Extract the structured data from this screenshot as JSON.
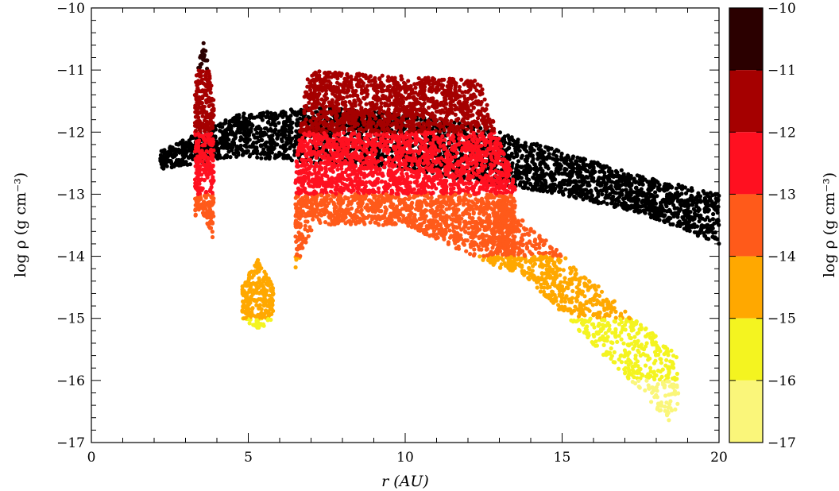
{
  "chart_data": {
    "type": "scatter",
    "title": "",
    "xlabel": "r (AU)",
    "ylabel": "log ρ (g cm⁻³)",
    "colorbar_label": "log ρ (g cm⁻³)",
    "xlim": [
      0,
      20
    ],
    "ylim": [
      -17,
      -10
    ],
    "x_ticks": [
      0,
      5,
      10,
      15,
      20
    ],
    "y_ticks": [
      -10,
      -11,
      -12,
      -13,
      -14,
      -15,
      -16,
      -17
    ],
    "x_tick_labels": [
      "0",
      "5",
      "10",
      "15",
      "20"
    ],
    "y_tick_labels": [
      "−10",
      "−11",
      "−12",
      "−13",
      "−14",
      "−15",
      "−16",
      "−17"
    ],
    "grid": false,
    "legend": "colorbar-right",
    "colorbar": {
      "range": [
        -17,
        -10
      ],
      "tick_labels": [
        "−10",
        "−11",
        "−12",
        "−13",
        "−14",
        "−15",
        "−16",
        "−17"
      ],
      "bins": [
        {
          "min": -11,
          "max": -10,
          "color": "#2b0000"
        },
        {
          "min": -12,
          "max": -11,
          "color": "#a50000"
        },
        {
          "min": -13,
          "max": -12,
          "color": "#ff1020"
        },
        {
          "min": -14,
          "max": -13,
          "color": "#ff5a1a"
        },
        {
          "min": -15,
          "max": -14,
          "color": "#ffa800"
        },
        {
          "min": -16,
          "max": -15,
          "color": "#f4f420"
        },
        {
          "min": -17,
          "max": -16,
          "color": "#faf67a"
        }
      ]
    },
    "particle_groups": [
      {
        "component": "background-disk",
        "color": "#000000",
        "r_range": [
          2.2,
          20
        ],
        "logrho_upper": [
          -12.3,
          -11.7,
          -11.6,
          -11.7,
          -11.9,
          -12.3,
          -12.7,
          -13.0
        ],
        "logrho_lower": [
          -12.6,
          -12.4,
          -12.5,
          -12.6,
          -12.8,
          -13.0,
          -13.3,
          -13.8
        ]
      },
      {
        "component": "inner-clump",
        "r_range": [
          3.3,
          3.9
        ],
        "logrho_range": [
          -14.0,
          -10.4
        ]
      },
      {
        "component": "mid-clump",
        "r_range": [
          4.8,
          5.8
        ],
        "logrho_range": [
          -15.3,
          -13.8
        ]
      },
      {
        "component": "main-arm",
        "r_range": [
          6.5,
          13.5
        ],
        "logrho_range": [
          -14.3,
          -10.8
        ]
      },
      {
        "component": "outer-tail",
        "r_range": [
          12.8,
          18.7
        ],
        "logrho_range": [
          -16.8,
          -13.0
        ]
      }
    ]
  }
}
